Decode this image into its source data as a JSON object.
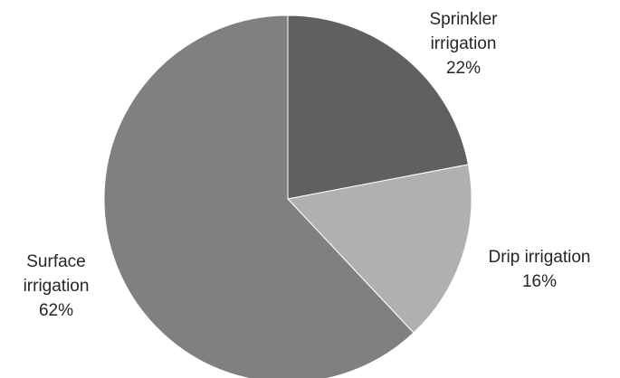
{
  "chart_data": {
    "type": "pie",
    "title": "",
    "slices": [
      {
        "label": "Sprinkler irrigation",
        "label_lines": [
          "Sprinkler",
          "irrigation",
          "22%"
        ],
        "value": 22,
        "color": "#606060"
      },
      {
        "label": "Drip irrigation",
        "label_lines": [
          "Drip irrigation",
          "16%"
        ],
        "value": 16,
        "color": "#b0b0b0"
      },
      {
        "label": "Surface irrigation",
        "label_lines": [
          "Surface",
          "irrigation",
          "62%"
        ],
        "value": 62,
        "color": "#808080"
      }
    ],
    "start_angle": "12 o'clock",
    "direction": "clockwise",
    "legend": "none",
    "data_labels": "outside, category name and percentage"
  }
}
